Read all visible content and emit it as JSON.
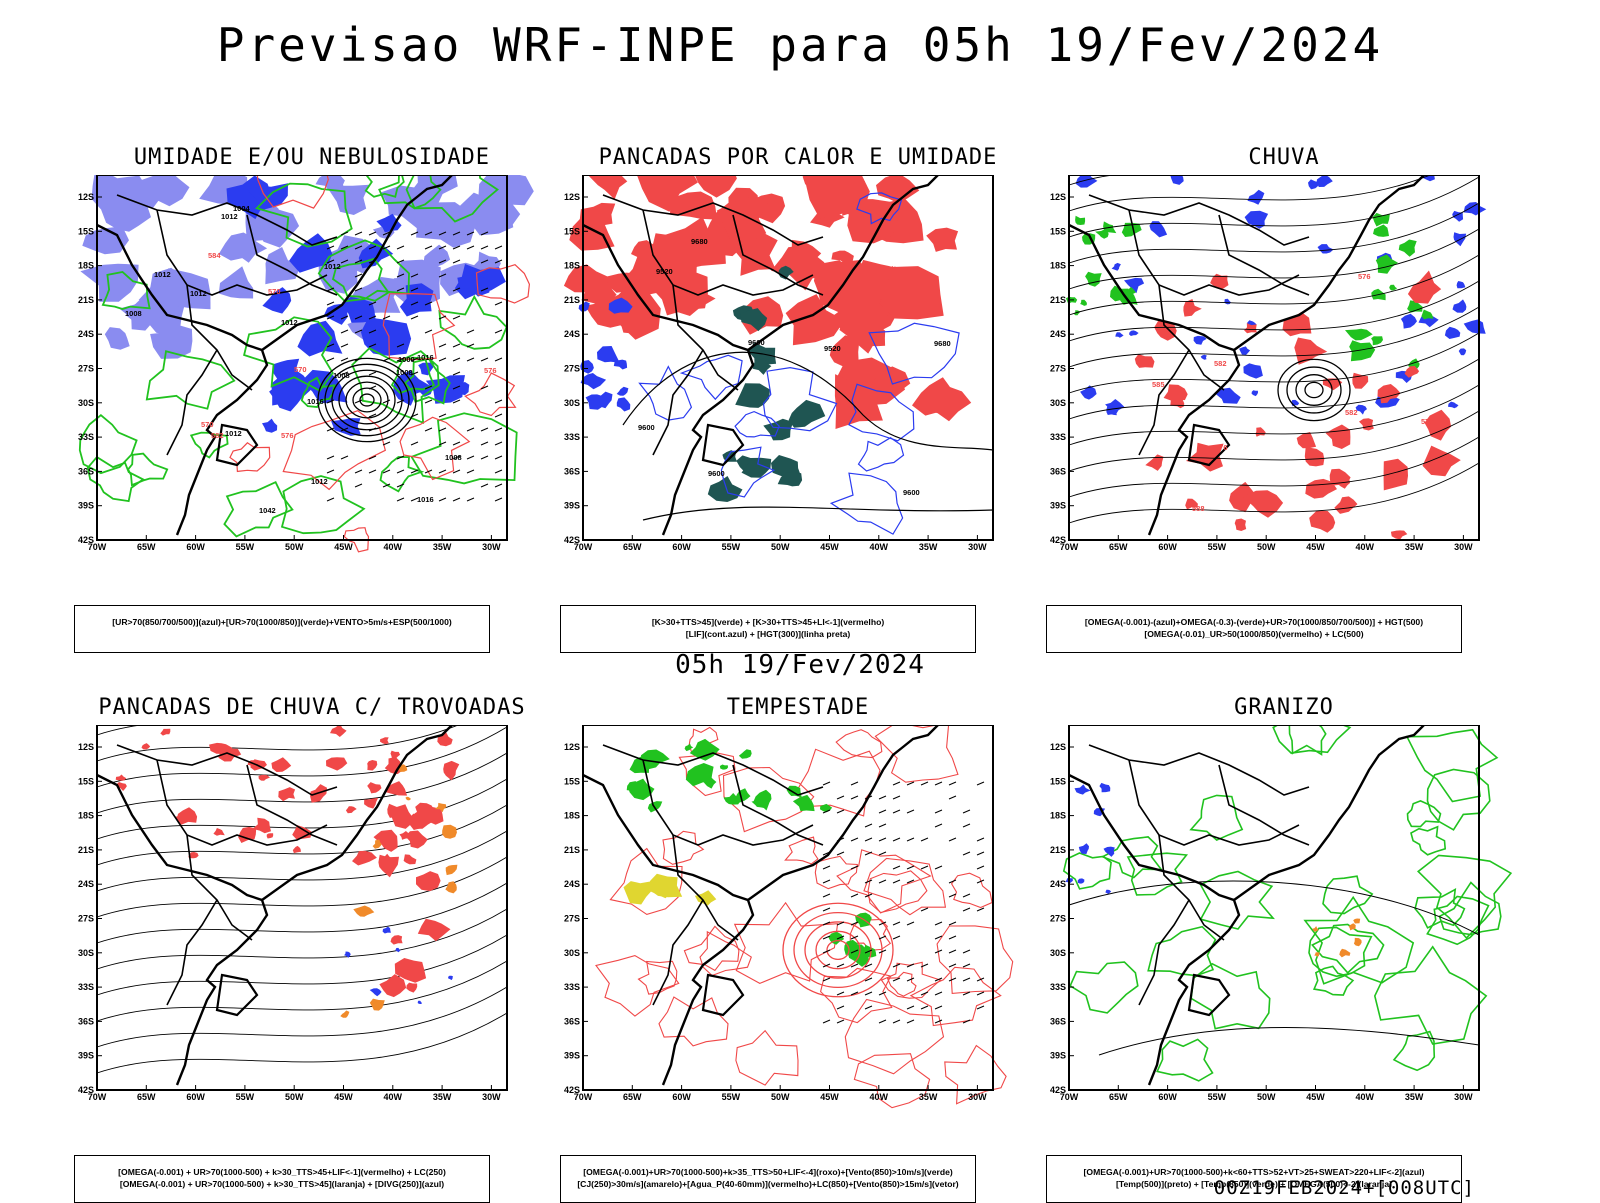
{
  "main_title": "Previsao WRF-INPE  para 05h 19/Fev/2024",
  "mid_title": "05h 19/Fev/2024",
  "footer": "00Z19FEB2024+[008UTC]",
  "axes": {
    "lat_labels": [
      "12S",
      "15S",
      "18S",
      "21S",
      "24S",
      "27S",
      "30S",
      "33S",
      "36S",
      "39S",
      "42S"
    ],
    "lon_labels": [
      "70W",
      "65W",
      "60W",
      "55W",
      "50W",
      "45W",
      "40W",
      "35W",
      "30W"
    ]
  },
  "colors": {
    "blue": "#2b3cf0",
    "light_blue": "#8a8cf0",
    "green": "#21c21f",
    "red": "#f04848",
    "dark_teal": "#1f5552",
    "orange": "#f08a2a",
    "yellow": "#e0d630"
  },
  "panels": [
    {
      "title": "UMIDADE E/OU NEBULOSIDADE",
      "legend": [
        "[UR>70(850/700/500)](azul)+[UR>70(1000/850)](verde)+VENTO>5m/s+ESP(500/1000)"
      ],
      "labels": [
        "1012",
        "1012",
        "1012",
        "1012",
        "1012",
        "1012",
        "1008",
        "1008",
        "1008",
        "1008",
        "1004",
        "1000",
        "1016",
        "1016",
        "1016",
        "1012",
        "570",
        "570",
        "570",
        "576",
        "576",
        "582",
        "584",
        "1042"
      ]
    },
    {
      "title": "PANCADAS POR CALOR E UMIDADE",
      "legend": [
        "[K>30+TTS>45](verde) + [K>30+TTS>45+LI<-1](vermelho)",
        "[LIF](cont.azul) + [HGT(300)](linha preta)"
      ],
      "labels": [
        "9680",
        "9680",
        "9600",
        "9600",
        "9600",
        "9520",
        "9520",
        "9600"
      ]
    },
    {
      "title": "CHUVA",
      "legend": [
        "[OMEGA(-0.001)-(azul)+OMEGA(-0.3)-(verde)+UR>70(1000/850/700/500)] + HGT(500)",
        "[OMEGA(-0.01)_UR>50(1000/850)(vermelho) + LC(500)"
      ],
      "labels": [
        "588",
        "582",
        "582",
        "576",
        "576",
        "576",
        "585"
      ]
    },
    {
      "title": "PANCADAS DE CHUVA C/ TROVOADAS",
      "legend": [
        "[OMEGA(-0.001) + UR>70(1000-500) + k>30_TTS>45+LIF<-1](vermelho) + LC(250)",
        "[OMEGA(-0.001) + UR>70(1000-500) + k>30_TTS>45](laranja) + [DIVG(250)](azul)"
      ],
      "labels": []
    },
    {
      "title": "TEMPESTADE",
      "legend": [
        "[OMEGA(-0.001)+UR>70(1000-500)+k>35_TTS>50+LIF<-4](roxo)+[Vento(850)>10m/s](verde)",
        "[CJ(250)>30m/s](amarelo)+[Agua_P(40-60mm)](vermelho)+LC(850)+[Vento(850)>15m/s](vetor)"
      ],
      "labels": []
    },
    {
      "title": "GRANIZO",
      "legend": [
        "[OMEGA(-0.001)+UR>70(1000-500)+k<60+TTS>52+VT>25+SWEAT>220+LIF<-2](azul)",
        "[Temp(500)](preto) + [Temp(850)](verde) + [OMEGA(500)<-2](laranja)"
      ],
      "labels": []
    }
  ]
}
